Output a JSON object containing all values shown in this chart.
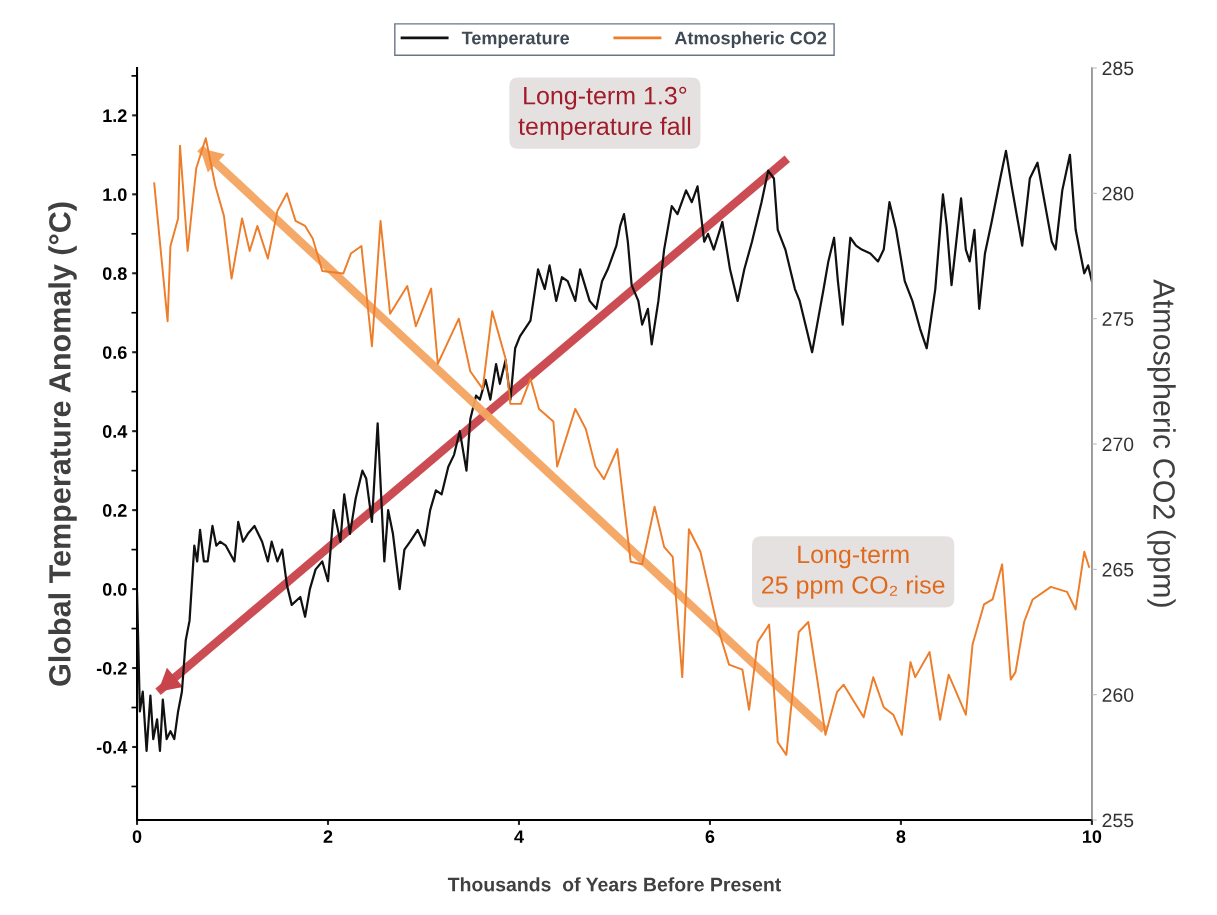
{
  "chart_data": {
    "type": "line",
    "xlabel": "Thousands  of Years Before Present",
    "ylabel": "Global Temperature Anomaly (°C)",
    "y2label": "Atmospheric CO2 (ppm)",
    "xlim": [
      0,
      10
    ],
    "xticks": [
      0,
      2,
      4,
      6,
      8,
      10
    ],
    "ylim": [
      -0.585,
      1.32
    ],
    "yticks": [
      -0.4,
      -0.2,
      {
        "value": 0,
        "label": "0.0"
      },
      0.2,
      0.4,
      0.6,
      0.8,
      {
        "value": 1,
        "label": "1.0"
      },
      1.2
    ],
    "y2lim": [
      255,
      285
    ],
    "y2ticks": [
      255,
      260,
      265,
      270,
      275,
      280,
      285
    ],
    "legend": "top",
    "grid": false,
    "annotations": [
      "Long-term 1.3°\ntemperature fall",
      "Long-term\n25 ppm CO₂ rise"
    ],
    "series": [
      {
        "name": "Temperature",
        "color": "#111111",
        "x": [
          0.0,
          0.03,
          0.06,
          0.1,
          0.14,
          0.17,
          0.21,
          0.24,
          0.27,
          0.31,
          0.35,
          0.39,
          0.43,
          0.47,
          0.51,
          0.55,
          0.6,
          0.63,
          0.66,
          0.7,
          0.74,
          0.79,
          0.83,
          0.87,
          0.93,
          1.02,
          1.06,
          1.11,
          1.16,
          1.23,
          1.31,
          1.37,
          1.41,
          1.47,
          1.52,
          1.57,
          1.62,
          1.71,
          1.76,
          1.81,
          1.87,
          1.94,
          2.0,
          2.06,
          2.13,
          2.17,
          2.23,
          2.29,
          2.36,
          2.4,
          2.46,
          2.52,
          2.59,
          2.63,
          2.68,
          2.75,
          2.8,
          2.86,
          2.94,
          3.01,
          3.07,
          3.13,
          3.19,
          3.26,
          3.32,
          3.38,
          3.45,
          3.49,
          3.55,
          3.59,
          3.65,
          3.7,
          3.76,
          3.8,
          3.86,
          3.91,
          3.96,
          4.01,
          4.12,
          4.2,
          4.27,
          4.32,
          4.39,
          4.45,
          4.51,
          4.59,
          4.64,
          4.74,
          4.81,
          4.87,
          4.93,
          5.02,
          5.06,
          5.1,
          5.14,
          5.18,
          5.25,
          5.29,
          5.35,
          5.39,
          5.46,
          5.52,
          5.6,
          5.66,
          5.75,
          5.81,
          5.87,
          5.94,
          5.98,
          6.04,
          6.13,
          6.21,
          6.29,
          6.36,
          6.44,
          6.54,
          6.61,
          6.67,
          6.71,
          6.79,
          6.89,
          6.94,
          7.01,
          7.07,
          7.13,
          7.19,
          7.24,
          7.3,
          7.34,
          7.39,
          7.47,
          7.53,
          7.59,
          7.68,
          7.76,
          7.82,
          7.88,
          7.95,
          8.04,
          8.12,
          8.2,
          8.27,
          8.36,
          8.44,
          8.48,
          8.53,
          8.58,
          8.63,
          8.68,
          8.72,
          8.77,
          8.82,
          8.88,
          8.95,
          9.04,
          9.1,
          9.16,
          9.27,
          9.35,
          9.43,
          9.52,
          9.58,
          9.62,
          9.69,
          9.77,
          9.83,
          9.92,
          9.96,
          10.0
        ],
        "values": [
          -0.01,
          -0.31,
          -0.26,
          -0.41,
          -0.27,
          -0.38,
          -0.33,
          -0.41,
          -0.28,
          -0.38,
          -0.36,
          -0.38,
          -0.31,
          -0.26,
          -0.13,
          -0.08,
          0.11,
          0.07,
          0.15,
          0.07,
          0.07,
          0.16,
          0.11,
          0.12,
          0.11,
          0.07,
          0.17,
          0.12,
          0.14,
          0.16,
          0.12,
          0.07,
          0.12,
          0.07,
          0.1,
          0.01,
          -0.04,
          -0.02,
          -0.07,
          0.0,
          0.05,
          0.07,
          0.02,
          0.2,
          0.12,
          0.24,
          0.14,
          0.23,
          0.3,
          0.28,
          0.17,
          0.42,
          0.07,
          0.2,
          0.14,
          0.0,
          0.1,
          0.12,
          0.15,
          0.11,
          0.2,
          0.25,
          0.24,
          0.31,
          0.34,
          0.4,
          0.3,
          0.43,
          0.49,
          0.48,
          0.53,
          0.48,
          0.57,
          0.52,
          0.58,
          0.48,
          0.61,
          0.64,
          0.68,
          0.81,
          0.76,
          0.82,
          0.73,
          0.79,
          0.78,
          0.73,
          0.81,
          0.73,
          0.71,
          0.78,
          0.81,
          0.87,
          0.92,
          0.95,
          0.88,
          0.77,
          0.73,
          0.67,
          0.71,
          0.62,
          0.73,
          0.86,
          0.97,
          0.95,
          1.01,
          0.98,
          1.02,
          0.88,
          0.9,
          0.86,
          0.93,
          0.81,
          0.73,
          0.81,
          0.88,
          0.98,
          1.06,
          1.04,
          0.91,
          0.86,
          0.76,
          0.73,
          0.66,
          0.6,
          0.68,
          0.76,
          0.83,
          0.89,
          0.78,
          0.67,
          0.89,
          0.87,
          0.86,
          0.85,
          0.83,
          0.86,
          0.98,
          0.91,
          0.78,
          0.73,
          0.66,
          0.61,
          0.76,
          1.0,
          0.92,
          0.77,
          0.88,
          0.99,
          0.86,
          0.83,
          0.91,
          0.71,
          0.85,
          0.93,
          1.04,
          1.11,
          1.02,
          0.87,
          1.04,
          1.08,
          0.96,
          0.88,
          0.86,
          1.01,
          1.1,
          0.91,
          0.8,
          0.82,
          0.78
        ]
      },
      {
        "name": "Atmospheric CO2",
        "color": "#ee7d2a",
        "axis": "y2",
        "x": [
          0.18,
          0.32,
          0.35,
          0.43,
          0.45,
          0.53,
          0.62,
          0.72,
          0.82,
          0.91,
          0.99,
          1.1,
          1.18,
          1.26,
          1.37,
          1.47,
          1.57,
          1.66,
          1.76,
          1.84,
          1.94,
          2.16,
          2.24,
          2.35,
          2.46,
          2.55,
          2.65,
          2.83,
          2.92,
          3.08,
          3.15,
          3.37,
          3.49,
          3.62,
          3.72,
          3.86,
          3.91,
          4.02,
          4.12,
          4.21,
          4.36,
          4.4,
          4.59,
          4.7,
          4.8,
          4.89,
          5.03,
          5.17,
          5.29,
          5.42,
          5.52,
          5.61,
          5.71,
          5.78,
          5.9,
          6.08,
          6.2,
          6.34,
          6.41,
          6.5,
          6.62,
          6.71,
          6.8,
          6.93,
          7.03,
          7.12,
          7.21,
          7.33,
          7.4,
          7.61,
          7.71,
          7.82,
          7.92,
          8.01,
          8.1,
          8.15,
          8.3,
          8.41,
          8.5,
          8.68,
          8.75,
          8.87,
          8.96,
          9.06,
          9.15,
          9.2,
          9.29,
          9.38,
          9.57,
          9.74,
          9.83,
          9.92,
          9.97
        ],
        "values": [
          280.4,
          274.9,
          277.9,
          279.0,
          281.9,
          277.7,
          281.0,
          282.2,
          280.3,
          279.1,
          276.6,
          279.0,
          277.7,
          278.7,
          277.4,
          279.3,
          280.0,
          278.9,
          278.7,
          278.2,
          276.9,
          276.8,
          277.6,
          277.9,
          273.9,
          278.9,
          275.2,
          276.3,
          274.7,
          276.2,
          273.2,
          275.0,
          272.9,
          272.2,
          275.3,
          273.4,
          271.6,
          271.6,
          272.6,
          271.4,
          270.9,
          269.1,
          271.4,
          270.6,
          269.1,
          268.6,
          269.8,
          265.3,
          265.2,
          267.5,
          265.9,
          265.5,
          260.7,
          266.6,
          265.7,
          262.7,
          261.2,
          261.0,
          259.4,
          262.1,
          262.8,
          258.1,
          257.6,
          262.5,
          262.9,
          260.7,
          258.4,
          260.1,
          260.4,
          259.1,
          260.7,
          259.5,
          259.2,
          258.4,
          261.3,
          260.7,
          261.7,
          259.0,
          260.8,
          259.2,
          262.0,
          263.6,
          263.8,
          265.2,
          260.6,
          260.9,
          262.9,
          263.8,
          264.3,
          264.1,
          263.4,
          265.7,
          265.1
        ]
      },
      {
        "type": "line",
        "color": "#c8434a",
        "x": [
          6.81,
          0.22
        ],
        "values": [
          1.09,
          -0.26
        ]
      },
      {
        "type": "line",
        "color": "#f4a460",
        "axis": "y2",
        "x": [
          7.2,
          0.66
        ],
        "values": [
          258.6,
          281.8
        ]
      }
    ]
  }
}
